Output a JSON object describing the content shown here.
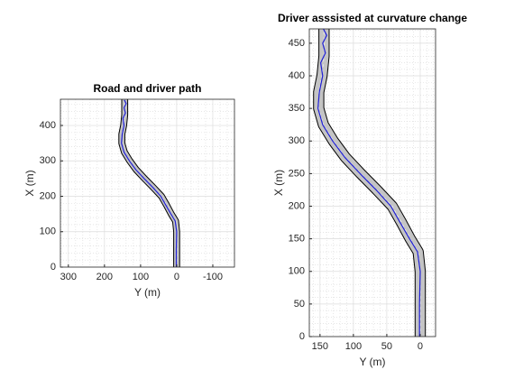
{
  "chart_data": [
    {
      "type": "line",
      "title": "Road and driver path",
      "xlabel": "Y (m)",
      "ylabel": "X (m)",
      "xlim": [
        322,
        -160
      ],
      "ylim": [
        0,
        474
      ],
      "xticks": [
        300,
        200,
        100,
        0,
        -100
      ],
      "yticks": [
        0,
        100,
        200,
        300,
        400
      ],
      "grid": true,
      "minor_grid": true,
      "road": {
        "color": "#c4c4c4",
        "edge_color": "#000000",
        "width": 14,
        "x": [
          0,
          0,
          0,
          3,
          15,
          28,
          42,
          65,
          89,
          112,
          130,
          145,
          152,
          152,
          147,
          144,
          144
        ],
        "values": [
          0,
          50,
          100,
          130,
          150,
          175,
          200,
          225,
          250,
          275,
          300,
          325,
          350,
          375,
          400,
          430,
          474
        ]
      },
      "series": [
        {
          "color": "#1f1fd6",
          "x": [
            1,
            1,
            0,
            4,
            16,
            30,
            44,
            66,
            90,
            113,
            131,
            146,
            153,
            151,
            146,
            149,
            142,
            146,
            140,
            145
          ],
          "values": [
            0,
            50,
            100,
            130,
            150,
            175,
            200,
            225,
            250,
            275,
            300,
            325,
            350,
            375,
            400,
            420,
            435,
            450,
            462,
            472
          ]
        }
      ]
    },
    {
      "type": "line",
      "title": "Driver asssisted at curvature change",
      "xlabel": "Y (m)",
      "ylabel": "X (m)",
      "xlim": [
        166,
        -23
      ],
      "ylim": [
        0,
        472
      ],
      "xticks": [
        150,
        100,
        50,
        0
      ],
      "yticks": [
        0,
        50,
        100,
        150,
        200,
        250,
        300,
        350,
        400,
        450
      ],
      "grid": true,
      "minor_grid": true,
      "road": {
        "color": "#c4c4c4",
        "edge_color": "#000000",
        "width": 14,
        "x": [
          0,
          0,
          0,
          3,
          15,
          28,
          42,
          65,
          89,
          112,
          130,
          145,
          152,
          152,
          147,
          144,
          144
        ],
        "values": [
          0,
          50,
          100,
          130,
          150,
          175,
          200,
          225,
          250,
          275,
          300,
          325,
          350,
          375,
          400,
          430,
          472
        ]
      },
      "series": [
        {
          "color": "#1f1fd6",
          "x": [
            1,
            1,
            0,
            4,
            16,
            30,
            44,
            66,
            90,
            113,
            131,
            146,
            153,
            151,
            146,
            149,
            142,
            146,
            140,
            145
          ],
          "values": [
            0,
            50,
            100,
            130,
            150,
            175,
            200,
            225,
            250,
            275,
            300,
            325,
            350,
            375,
            400,
            420,
            435,
            450,
            462,
            472
          ]
        }
      ]
    }
  ]
}
